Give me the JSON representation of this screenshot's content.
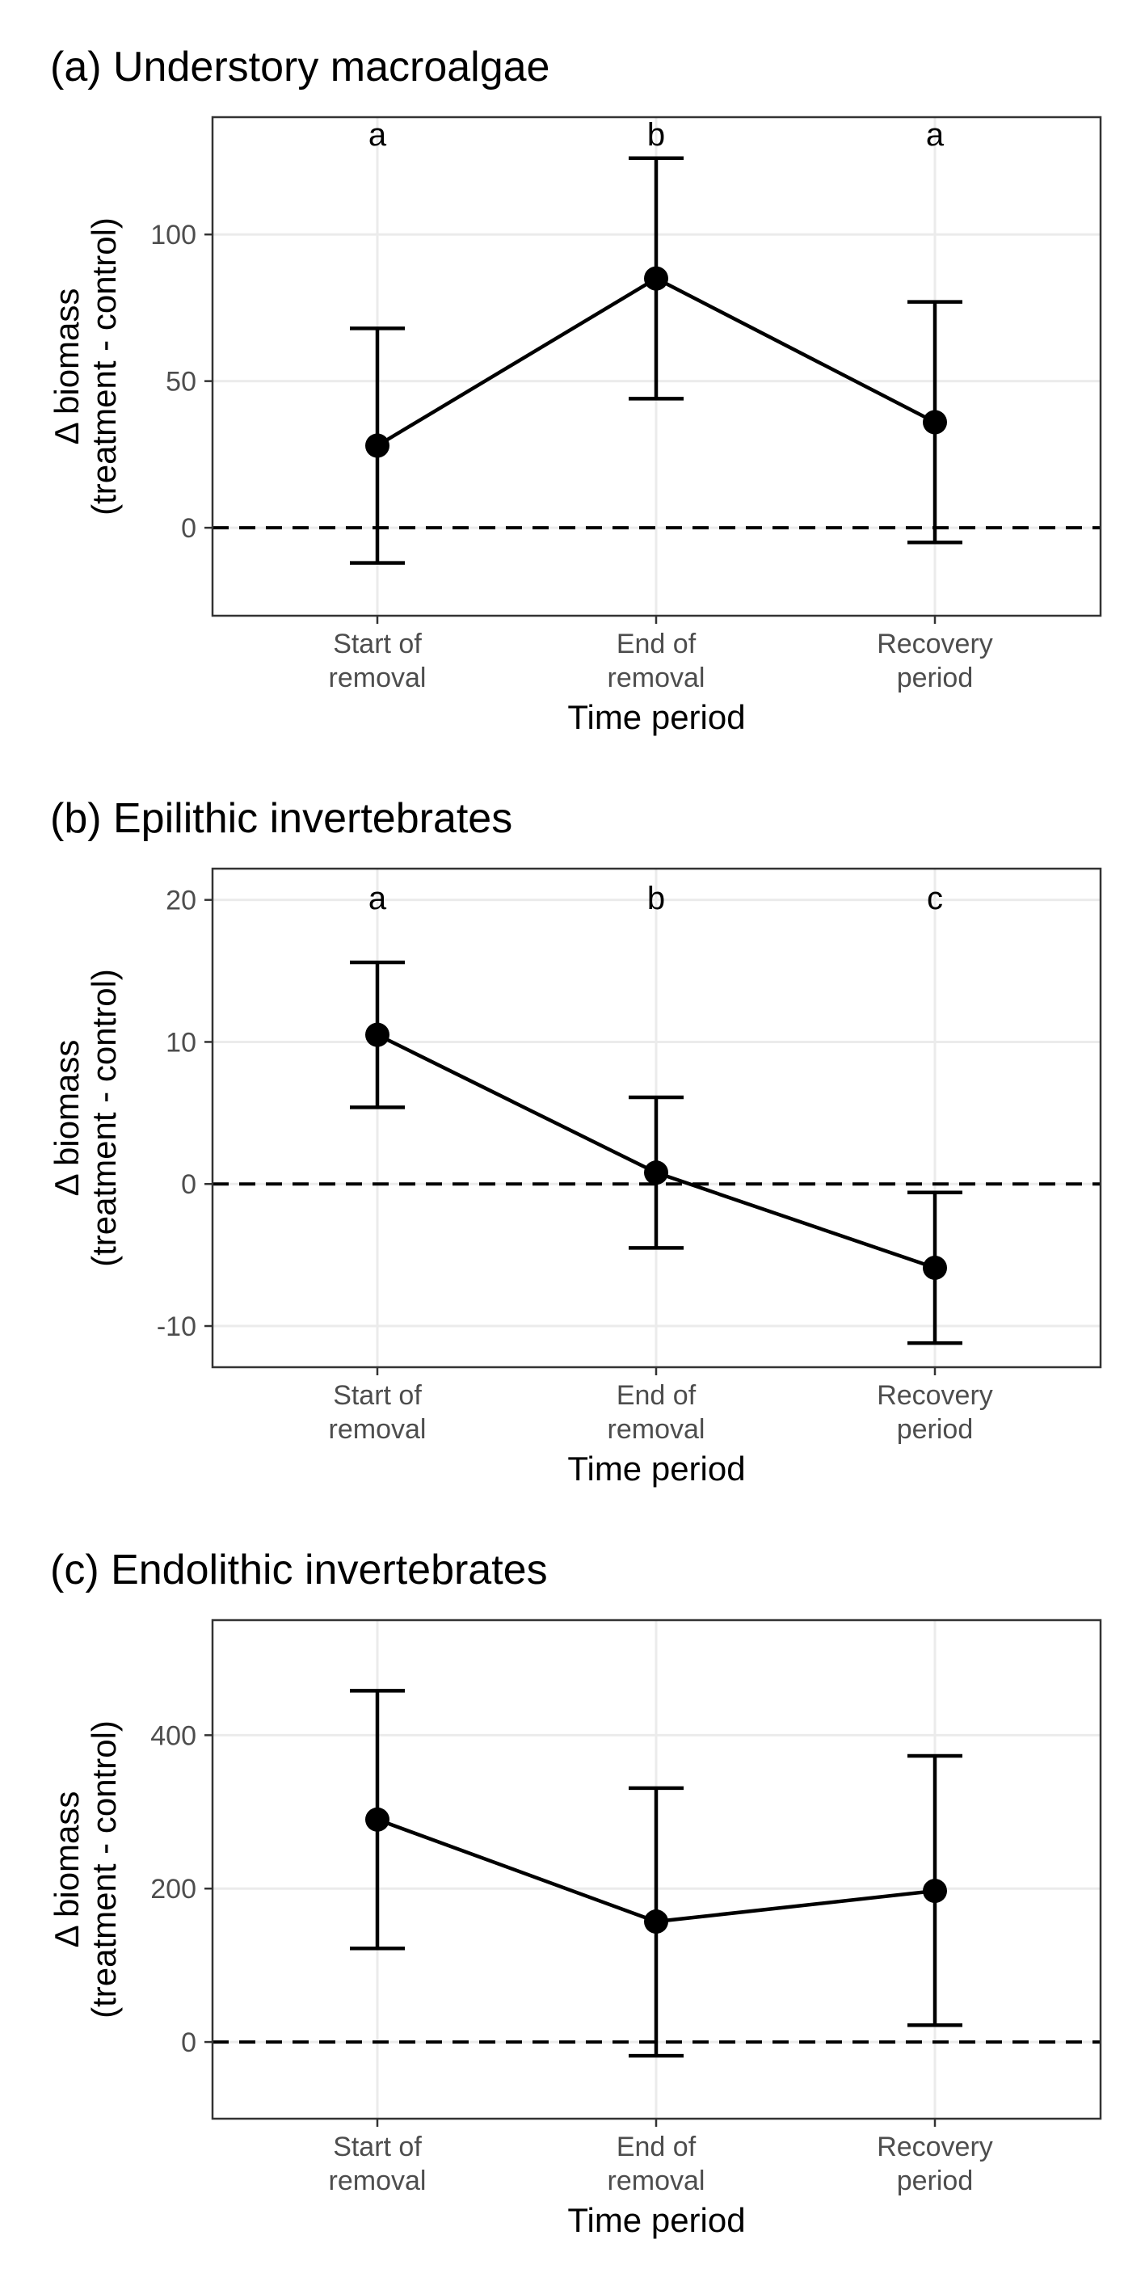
{
  "chart_data": [
    {
      "type": "line",
      "title": "(a) Understory macroalgae",
      "xlabel": "Time period",
      "ylabel": [
        "Δ biomass",
        "(treatment - control)"
      ],
      "categories": [
        [
          "Start of",
          "removal"
        ],
        [
          "End of",
          "removal"
        ],
        [
          "Recovery",
          "period"
        ]
      ],
      "values": [
        28,
        85,
        36
      ],
      "ci_lower": [
        -12,
        44,
        -5
      ],
      "ci_upper": [
        68,
        126,
        77
      ],
      "letters": [
        "a",
        "b",
        "a"
      ],
      "yticks": [
        0,
        50,
        100
      ],
      "ylim": [
        -30,
        140
      ],
      "reference_line": 0,
      "grid": true
    },
    {
      "type": "line",
      "title": "(b) Epilithic invertebrates",
      "xlabel": "Time period",
      "ylabel": [
        "Δ biomass",
        "(treatment - control)"
      ],
      "categories": [
        [
          "Start of",
          "removal"
        ],
        [
          "End of",
          "removal"
        ],
        [
          "Recovery",
          "period"
        ]
      ],
      "values": [
        10.5,
        0.8,
        -5.9
      ],
      "ci_lower": [
        5.4,
        -4.5,
        -11.2
      ],
      "ci_upper": [
        15.6,
        6.1,
        -0.6
      ],
      "letters": [
        "a",
        "b",
        "c"
      ],
      "yticks": [
        -10,
        0,
        10,
        20
      ],
      "ylim": [
        -12.9,
        22.2
      ],
      "reference_line": 0,
      "grid": true
    },
    {
      "type": "line",
      "title": "(c) Endolithic invertebrates",
      "xlabel": "Time period",
      "ylabel": [
        "Δ biomass",
        "(treatment - control)"
      ],
      "categories": [
        [
          "Start of",
          "removal"
        ],
        [
          "End of",
          "removal"
        ],
        [
          "Recovery",
          "period"
        ]
      ],
      "values": [
        290,
        157,
        197
      ],
      "ci_lower": [
        122,
        -18,
        22
      ],
      "ci_upper": [
        458,
        331,
        373
      ],
      "letters": [],
      "yticks": [
        0,
        200,
        400
      ],
      "ylim": [
        -100,
        550
      ],
      "reference_line": 0,
      "grid": true
    }
  ]
}
